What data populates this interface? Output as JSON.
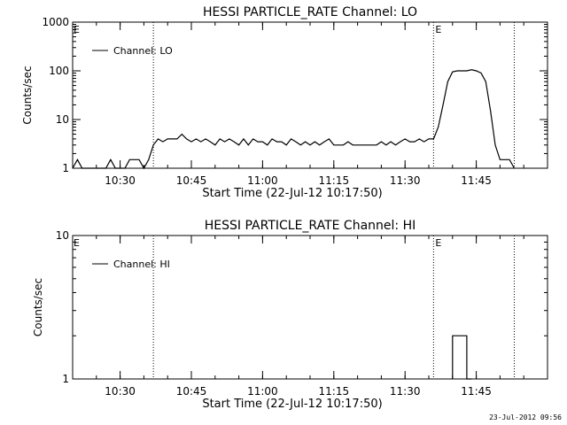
{
  "chart_data": [
    {
      "type": "line",
      "title": "HESSI PARTICLE_RATE Channel: LO",
      "xlabel": "Start Time (22-Jul-12 10:17:50)",
      "ylabel": "Counts/sec",
      "yscale": "log",
      "xlim": [
        "10:20",
        "12:00"
      ],
      "ylim": [
        1,
        1000
      ],
      "x_ticks": [
        "10:30",
        "10:45",
        "11:00",
        "11:15",
        "11:30",
        "11:45"
      ],
      "y_ticks": [
        "1",
        "10",
        "100",
        "1000"
      ],
      "legend": "top-left",
      "markers": [
        {
          "time": "10:37",
          "label": ""
        },
        {
          "time": "11:36",
          "label": "E"
        },
        {
          "time": "11:53",
          "label": ""
        }
      ],
      "start_marker_label": "E",
      "series": [
        {
          "name": "Channel: LO",
          "x": [
            "10:20",
            "10:21",
            "10:22",
            "10:23",
            "10:24",
            "10:25",
            "10:26",
            "10:27",
            "10:28",
            "10:29",
            "10:30",
            "10:31",
            "10:32",
            "10:33",
            "10:34",
            "10:35",
            "10:36",
            "10:37",
            "10:38",
            "10:39",
            "10:40",
            "10:41",
            "10:42",
            "10:43",
            "10:44",
            "10:45",
            "10:46",
            "10:47",
            "10:48",
            "10:49",
            "10:50",
            "10:51",
            "10:52",
            "10:53",
            "10:54",
            "10:55",
            "10:56",
            "10:57",
            "10:58",
            "10:59",
            "11:00",
            "11:01",
            "11:02",
            "11:03",
            "11:04",
            "11:05",
            "11:06",
            "11:07",
            "11:08",
            "11:09",
            "11:10",
            "11:11",
            "11:12",
            "11:13",
            "11:14",
            "11:15",
            "11:16",
            "11:17",
            "11:18",
            "11:19",
            "11:20",
            "11:21",
            "11:22",
            "11:23",
            "11:24",
            "11:25",
            "11:26",
            "11:27",
            "11:28",
            "11:29",
            "11:30",
            "11:31",
            "11:32",
            "11:33",
            "11:34",
            "11:35",
            "11:36",
            "11:37",
            "11:38",
            "11:39",
            "11:40",
            "11:41",
            "11:42",
            "11:43",
            "11:44",
            "11:45",
            "11:46",
            "11:47",
            "11:48",
            "11:49",
            "11:50",
            "11:51",
            "11:52",
            "11:53"
          ],
          "y": [
            1,
            1.5,
            1,
            1,
            1,
            1,
            1,
            1,
            1.5,
            1,
            1,
            1,
            1.5,
            1.5,
            1.5,
            1,
            1.5,
            3,
            4,
            3.5,
            4,
            4,
            4,
            5,
            4,
            3.5,
            4,
            3.5,
            4,
            3.5,
            3,
            4,
            3.5,
            4,
            3.5,
            3,
            4,
            3,
            4,
            3.5,
            3.5,
            3,
            4,
            3.5,
            3.5,
            3,
            4,
            3.5,
            3,
            3.5,
            3,
            3.5,
            3,
            3.5,
            4,
            3,
            3,
            3,
            3.5,
            3,
            3,
            3,
            3,
            3,
            3,
            3.5,
            3,
            3.5,
            3,
            3.5,
            4,
            3.5,
            3.5,
            4,
            3.5,
            4,
            4,
            7,
            20,
            60,
            95,
            100,
            100,
            100,
            105,
            100,
            90,
            60,
            15,
            3,
            1.5,
            1.5,
            1.5,
            1
          ]
        }
      ]
    },
    {
      "type": "line",
      "title": "HESSI PARTICLE_RATE Channel: HI",
      "xlabel": "Start Time (22-Jul-12 10:17:50)",
      "ylabel": "Counts/sec",
      "yscale": "log",
      "xlim": [
        "10:20",
        "12:00"
      ],
      "ylim": [
        1,
        10
      ],
      "x_ticks": [
        "10:30",
        "10:45",
        "11:00",
        "11:15",
        "11:30",
        "11:45"
      ],
      "y_ticks": [
        "1",
        "10"
      ],
      "legend": "top-left",
      "markers": [
        {
          "time": "10:37",
          "label": ""
        },
        {
          "time": "11:36",
          "label": "E"
        },
        {
          "time": "11:53",
          "label": ""
        }
      ],
      "start_marker_label": "E",
      "series": [
        {
          "name": "Channel: HI",
          "x": [
            "11:40",
            "11:40",
            "11:41",
            "11:42",
            "11:43",
            "11:43",
            "11:44"
          ],
          "y": [
            1,
            2,
            2,
            2,
            2,
            1,
            1
          ]
        }
      ]
    }
  ],
  "footer": "23-Jul-2012 09:56"
}
